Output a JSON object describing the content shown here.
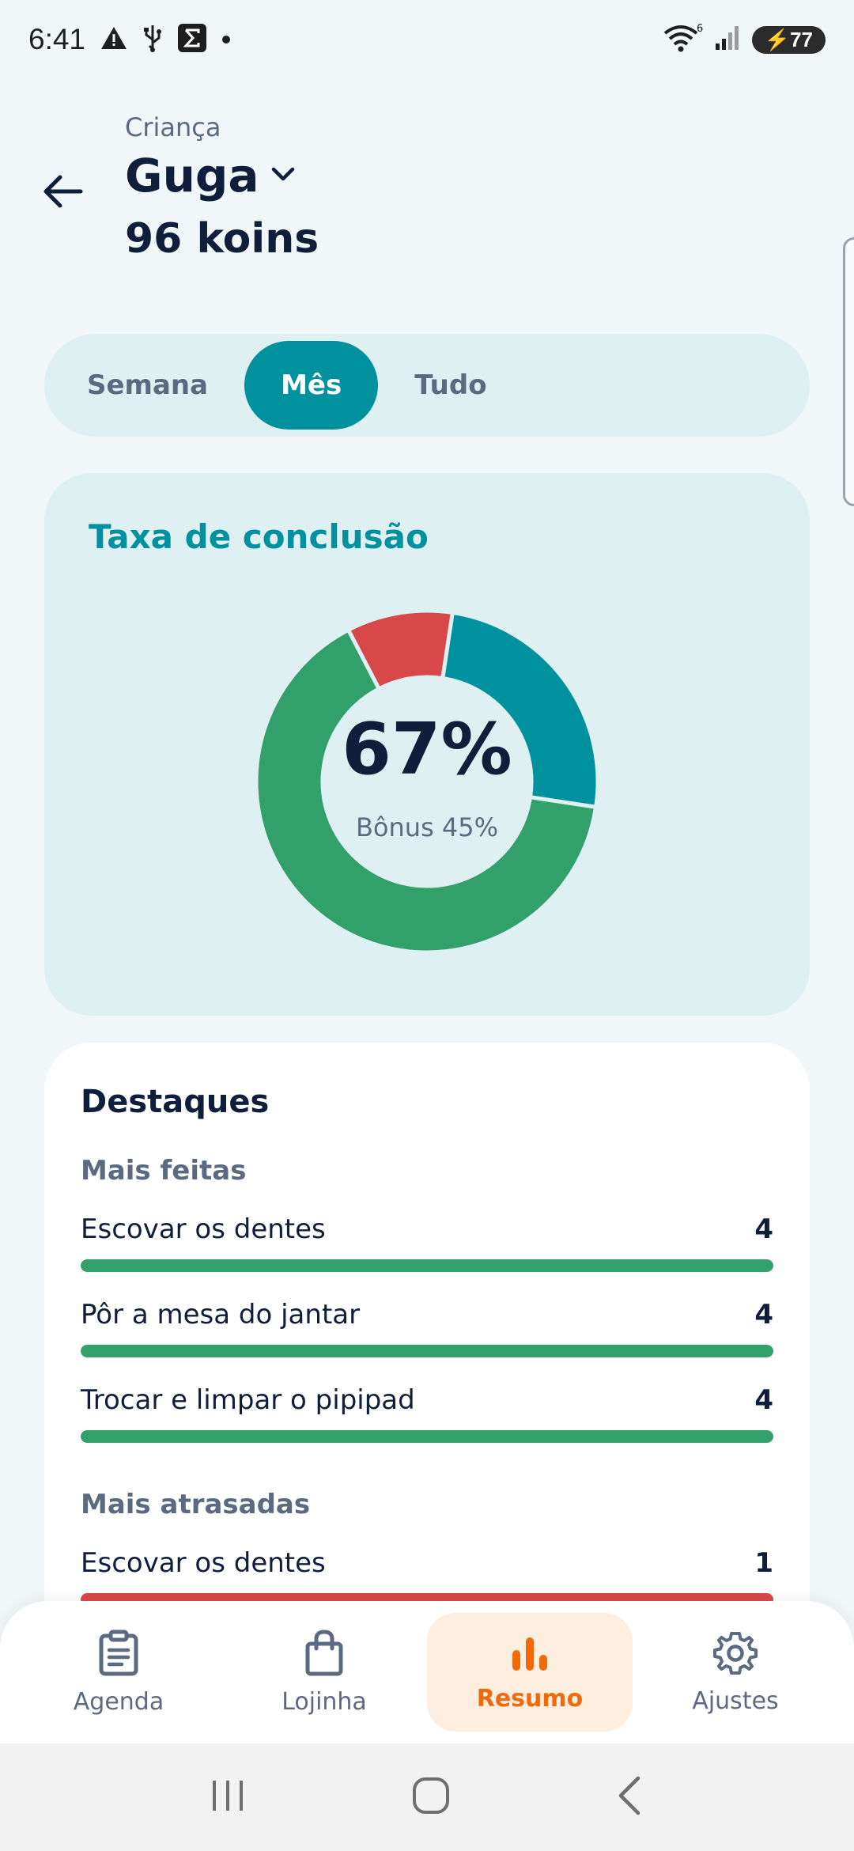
{
  "status_bar": {
    "time": "6:41",
    "battery": "77",
    "network_badge": "6"
  },
  "header": {
    "label": "Criança",
    "child_name": "Guga",
    "koins": "96 koins"
  },
  "period_tabs": {
    "items": [
      {
        "label": "Semana",
        "active": false
      },
      {
        "label": "Mês",
        "active": true
      },
      {
        "label": "Tudo",
        "active": false
      }
    ]
  },
  "completion": {
    "title": "Taxa de conclusão",
    "percent_label": "67%",
    "bonus_label": "Bônus 45%",
    "chart_data": {
      "type": "pie",
      "style": "donut",
      "segments": [
        {
          "color": "#00919f",
          "fraction": 0.25
        },
        {
          "color": "#32a06a",
          "fraction": 0.65
        },
        {
          "color": "#d94848",
          "fraction": 0.1
        }
      ]
    }
  },
  "highlights": {
    "title": "Destaques",
    "most_done": {
      "title": "Mais feitas",
      "items": [
        {
          "label": "Escovar os dentes",
          "count": "4",
          "fill_fraction": 1.0
        },
        {
          "label": "Pôr a mesa do jantar",
          "count": "4",
          "fill_fraction": 1.0
        },
        {
          "label": "Trocar e limpar o pipipad",
          "count": "4",
          "fill_fraction": 1.0
        }
      ],
      "color": "#32a06a"
    },
    "most_late": {
      "title": "Mais atrasadas",
      "items": [
        {
          "label": "Escovar os dentes",
          "count": "1",
          "fill_fraction": 1.0
        }
      ],
      "color": "#d94848"
    }
  },
  "bottom_nav": {
    "items": [
      {
        "label": "Agenda",
        "icon": "clipboard-icon",
        "active": false
      },
      {
        "label": "Lojinha",
        "icon": "shopping-bag-icon",
        "active": false
      },
      {
        "label": "Resumo",
        "icon": "bar-chart-icon",
        "active": true
      },
      {
        "label": "Ajustes",
        "icon": "gear-icon",
        "active": false
      }
    ]
  },
  "colors": {
    "accent": "#00919f",
    "success": "#32a06a",
    "danger": "#d94848",
    "active_nav": "#f06a0b"
  }
}
